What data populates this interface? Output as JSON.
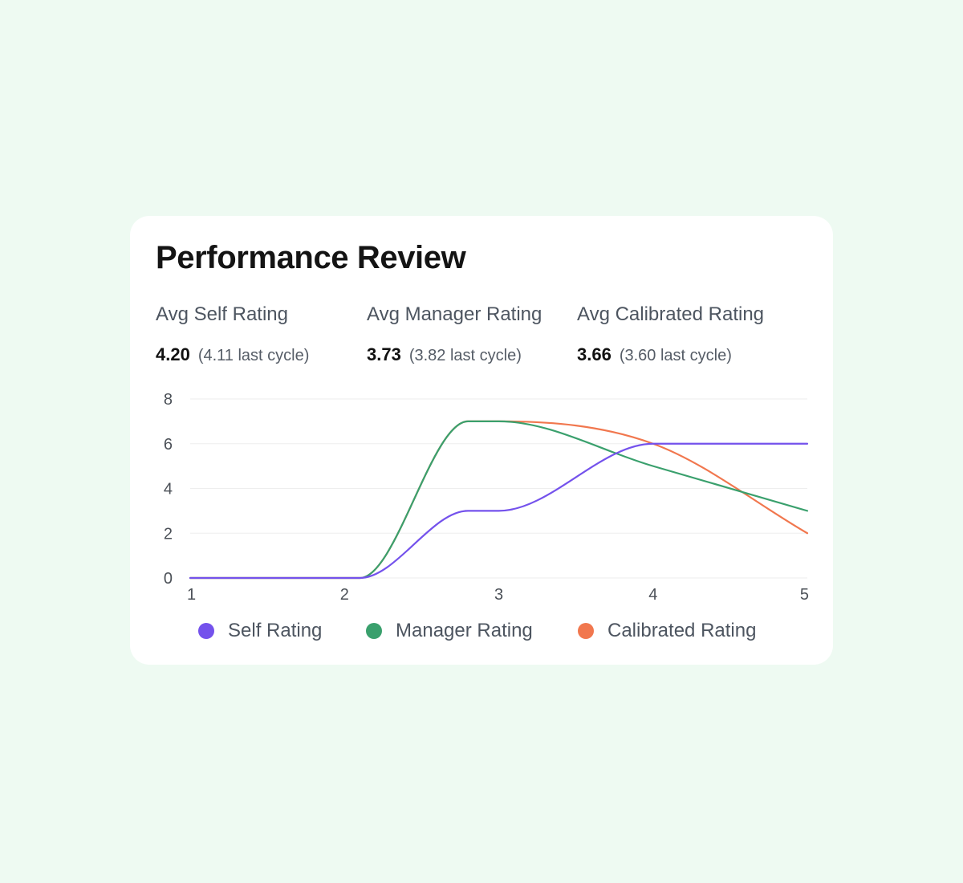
{
  "title": "Performance Review",
  "stats": [
    {
      "label": "Avg Self Rating",
      "value": "4.20",
      "previous": "(4.11 last cycle)"
    },
    {
      "label": "Avg Manager Rating",
      "value": "3.73",
      "previous": "(3.82 last cycle)"
    },
    {
      "label": "Avg Calibrated Rating",
      "value": "3.66",
      "previous": "(3.60 last cycle)"
    }
  ],
  "colors": {
    "background": "#eefaf2",
    "card": "#ffffff",
    "grid": "#eeeeee"
  },
  "chart_data": {
    "type": "line",
    "smooth": true,
    "title": "",
    "xlabel": "",
    "ylabel": "",
    "x_ticks": [
      "1",
      "2",
      "3",
      "4",
      "5"
    ],
    "y_ticks": [
      "0",
      "2",
      "4",
      "6",
      "8"
    ],
    "xlim": [
      1,
      5
    ],
    "ylim": [
      0,
      8
    ],
    "grid": "horizontal",
    "legend": "bottom",
    "series": [
      {
        "name": "Self Rating",
        "color": "#7452ec",
        "points": [
          [
            1,
            0
          ],
          [
            2.1,
            0
          ],
          [
            2.8,
            3
          ],
          [
            3,
            3
          ],
          [
            4,
            6
          ],
          [
            5,
            6
          ]
        ]
      },
      {
        "name": "Manager Rating",
        "color": "#3aa06d",
        "points": [
          [
            1,
            0
          ],
          [
            2.1,
            0
          ],
          [
            2.8,
            7
          ],
          [
            3,
            7
          ],
          [
            4,
            5
          ],
          [
            5,
            3
          ]
        ]
      },
      {
        "name": "Calibrated Rating",
        "color": "#f1774e",
        "points": [
          [
            1,
            0
          ],
          [
            2.1,
            0
          ],
          [
            2.8,
            7
          ],
          [
            3,
            7
          ],
          [
            4,
            6
          ],
          [
            5,
            2
          ]
        ]
      }
    ]
  }
}
